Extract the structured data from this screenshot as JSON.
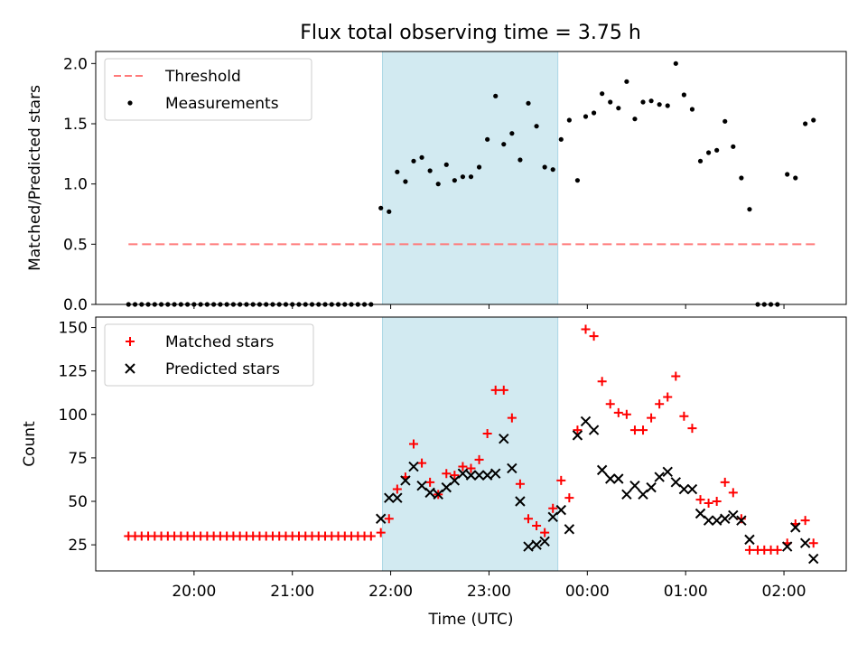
{
  "title": "Flux total observing time = 3.75 h",
  "colors": {
    "threshold": "#ff7a7a",
    "measurement": "#000000",
    "matched": "#ff0000",
    "predicted": "#000000",
    "shade": "#add8e6"
  },
  "chart_data": [
    {
      "type": "scatter",
      "panel": "top",
      "ylabel": "Matched/Predicted stars",
      "xlabel": "",
      "ylim": [
        0,
        2.1
      ],
      "yticks": [
        "0.0",
        "0.5",
        "1.0",
        "1.5",
        "2.0"
      ],
      "xticks": [
        "20:00",
        "21:00",
        "22:00",
        "23:00",
        "00:00",
        "01:00",
        "02:00"
      ],
      "shaded_region": [
        "21:55",
        "23:42"
      ],
      "legend": [
        "Threshold",
        "Measurements"
      ],
      "legend_position": "upper-left",
      "threshold": {
        "name": "Threshold",
        "value": 0.5,
        "x_range": [
          "19:20",
          "02:20"
        ]
      },
      "series": [
        {
          "name": "Measurements",
          "points": [
            [
              "19:20",
              0.0
            ],
            [
              "19:24",
              0.0
            ],
            [
              "19:28",
              0.0
            ],
            [
              "19:32",
              0.0
            ],
            [
              "19:36",
              0.0
            ],
            [
              "19:40",
              0.0
            ],
            [
              "19:44",
              0.0
            ],
            [
              "19:48",
              0.0
            ],
            [
              "19:52",
              0.0
            ],
            [
              "19:56",
              0.0
            ],
            [
              "20:00",
              0.0
            ],
            [
              "20:04",
              0.0
            ],
            [
              "20:08",
              0.0
            ],
            [
              "20:12",
              0.0
            ],
            [
              "20:16",
              0.0
            ],
            [
              "20:20",
              0.0
            ],
            [
              "20:24",
              0.0
            ],
            [
              "20:28",
              0.0
            ],
            [
              "20:32",
              0.0
            ],
            [
              "20:36",
              0.0
            ],
            [
              "20:40",
              0.0
            ],
            [
              "20:44",
              0.0
            ],
            [
              "20:48",
              0.0
            ],
            [
              "20:52",
              0.0
            ],
            [
              "20:56",
              0.0
            ],
            [
              "21:00",
              0.0
            ],
            [
              "21:04",
              0.0
            ],
            [
              "21:08",
              0.0
            ],
            [
              "21:12",
              0.0
            ],
            [
              "21:16",
              0.0
            ],
            [
              "21:20",
              0.0
            ],
            [
              "21:24",
              0.0
            ],
            [
              "21:28",
              0.0
            ],
            [
              "21:32",
              0.0
            ],
            [
              "21:36",
              0.0
            ],
            [
              "21:40",
              0.0
            ],
            [
              "21:44",
              0.0
            ],
            [
              "21:48",
              0.0
            ],
            [
              "21:54",
              0.8
            ],
            [
              "21:59",
              0.77
            ],
            [
              "22:04",
              1.1
            ],
            [
              "22:09",
              1.02
            ],
            [
              "22:14",
              1.19
            ],
            [
              "22:19",
              1.22
            ],
            [
              "22:24",
              1.11
            ],
            [
              "22:29",
              1.0
            ],
            [
              "22:34",
              1.16
            ],
            [
              "22:39",
              1.03
            ],
            [
              "22:44",
              1.06
            ],
            [
              "22:49",
              1.06
            ],
            [
              "22:54",
              1.14
            ],
            [
              "22:59",
              1.37
            ],
            [
              "23:04",
              1.73
            ],
            [
              "23:09",
              1.33
            ],
            [
              "23:14",
              1.42
            ],
            [
              "23:19",
              1.2
            ],
            [
              "23:24",
              1.67
            ],
            [
              "23:29",
              1.48
            ],
            [
              "23:34",
              1.14
            ],
            [
              "23:39",
              1.12
            ],
            [
              "23:44",
              1.37
            ],
            [
              "23:49",
              1.53
            ],
            [
              "23:54",
              1.03
            ],
            [
              "23:59",
              1.56
            ],
            [
              "00:04",
              1.59
            ],
            [
              "00:09",
              1.75
            ],
            [
              "00:14",
              1.68
            ],
            [
              "00:19",
              1.63
            ],
            [
              "00:24",
              1.85
            ],
            [
              "00:29",
              1.54
            ],
            [
              "00:34",
              1.68
            ],
            [
              "00:39",
              1.69
            ],
            [
              "00:44",
              1.66
            ],
            [
              "00:49",
              1.65
            ],
            [
              "00:54",
              2.0
            ],
            [
              "00:59",
              1.74
            ],
            [
              "01:04",
              1.62
            ],
            [
              "01:09",
              1.19
            ],
            [
              "01:14",
              1.26
            ],
            [
              "01:19",
              1.28
            ],
            [
              "01:24",
              1.52
            ],
            [
              "01:29",
              1.31
            ],
            [
              "01:34",
              1.05
            ],
            [
              "01:39",
              0.79
            ],
            [
              "01:44",
              0.0
            ],
            [
              "01:48",
              0.0
            ],
            [
              "01:52",
              0.0
            ],
            [
              "01:56",
              0.0
            ],
            [
              "02:02",
              1.08
            ],
            [
              "02:07",
              1.05
            ],
            [
              "02:13",
              1.5
            ],
            [
              "02:18",
              1.53
            ]
          ]
        }
      ]
    },
    {
      "type": "scatter",
      "panel": "bottom",
      "ylabel": "Count",
      "xlabel": "Time (UTC)",
      "ylim": [
        10,
        156
      ],
      "yticks": [
        "25",
        "50",
        "75",
        "100",
        "125",
        "150"
      ],
      "xticks": [
        "20:00",
        "21:00",
        "22:00",
        "23:00",
        "00:00",
        "01:00",
        "02:00"
      ],
      "shaded_region": [
        "21:55",
        "23:42"
      ],
      "legend": [
        "Matched stars",
        "Predicted stars"
      ],
      "legend_position": "upper-left",
      "series": [
        {
          "name": "Matched stars",
          "marker": "plus",
          "points": [
            [
              "19:20",
              30
            ],
            [
              "19:24",
              30
            ],
            [
              "19:28",
              30
            ],
            [
              "19:32",
              30
            ],
            [
              "19:36",
              30
            ],
            [
              "19:40",
              30
            ],
            [
              "19:44",
              30
            ],
            [
              "19:48",
              30
            ],
            [
              "19:52",
              30
            ],
            [
              "19:56",
              30
            ],
            [
              "20:00",
              30
            ],
            [
              "20:04",
              30
            ],
            [
              "20:08",
              30
            ],
            [
              "20:12",
              30
            ],
            [
              "20:16",
              30
            ],
            [
              "20:20",
              30
            ],
            [
              "20:24",
              30
            ],
            [
              "20:28",
              30
            ],
            [
              "20:32",
              30
            ],
            [
              "20:36",
              30
            ],
            [
              "20:40",
              30
            ],
            [
              "20:44",
              30
            ],
            [
              "20:48",
              30
            ],
            [
              "20:52",
              30
            ],
            [
              "20:56",
              30
            ],
            [
              "21:00",
              30
            ],
            [
              "21:04",
              30
            ],
            [
              "21:08",
              30
            ],
            [
              "21:12",
              30
            ],
            [
              "21:16",
              30
            ],
            [
              "21:20",
              30
            ],
            [
              "21:24",
              30
            ],
            [
              "21:28",
              30
            ],
            [
              "21:32",
              30
            ],
            [
              "21:36",
              30
            ],
            [
              "21:40",
              30
            ],
            [
              "21:44",
              30
            ],
            [
              "21:48",
              30
            ],
            [
              "21:54",
              32
            ],
            [
              "21:59",
              40
            ],
            [
              "22:04",
              57
            ],
            [
              "22:09",
              64
            ],
            [
              "22:14",
              83
            ],
            [
              "22:19",
              72
            ],
            [
              "22:24",
              61
            ],
            [
              "22:29",
              54
            ],
            [
              "22:34",
              66
            ],
            [
              "22:39",
              65
            ],
            [
              "22:44",
              70
            ],
            [
              "22:49",
              69
            ],
            [
              "22:54",
              74
            ],
            [
              "22:59",
              89
            ],
            [
              "23:04",
              114
            ],
            [
              "23:09",
              114
            ],
            [
              "23:14",
              98
            ],
            [
              "23:19",
              60
            ],
            [
              "23:24",
              40
            ],
            [
              "23:29",
              36
            ],
            [
              "23:34",
              32
            ],
            [
              "23:39",
              46
            ],
            [
              "23:44",
              62
            ],
            [
              "23:49",
              52
            ],
            [
              "23:54",
              91
            ],
            [
              "23:59",
              149
            ],
            [
              "00:04",
              145
            ],
            [
              "00:09",
              119
            ],
            [
              "00:14",
              106
            ],
            [
              "00:19",
              101
            ],
            [
              "00:24",
              100
            ],
            [
              "00:29",
              91
            ],
            [
              "00:34",
              91
            ],
            [
              "00:39",
              98
            ],
            [
              "00:44",
              106
            ],
            [
              "00:49",
              110
            ],
            [
              "00:54",
              122
            ],
            [
              "00:59",
              99
            ],
            [
              "01:04",
              92
            ],
            [
              "01:09",
              51
            ],
            [
              "01:14",
              49
            ],
            [
              "01:19",
              50
            ],
            [
              "01:24",
              61
            ],
            [
              "01:29",
              55
            ],
            [
              "01:34",
              40
            ],
            [
              "01:39",
              22
            ],
            [
              "01:44",
              22
            ],
            [
              "01:48",
              22
            ],
            [
              "01:52",
              22
            ],
            [
              "01:56",
              22
            ],
            [
              "02:02",
              26
            ],
            [
              "02:07",
              37
            ],
            [
              "02:13",
              39
            ],
            [
              "02:18",
              26
            ]
          ]
        },
        {
          "name": "Predicted stars",
          "marker": "x",
          "points": [
            [
              "21:54",
              40
            ],
            [
              "21:59",
              52
            ],
            [
              "22:04",
              52
            ],
            [
              "22:09",
              62
            ],
            [
              "22:14",
              70
            ],
            [
              "22:19",
              59
            ],
            [
              "22:24",
              55
            ],
            [
              "22:29",
              54
            ],
            [
              "22:34",
              58
            ],
            [
              "22:39",
              62
            ],
            [
              "22:44",
              66
            ],
            [
              "22:49",
              65
            ],
            [
              "22:54",
              65
            ],
            [
              "22:59",
              65
            ],
            [
              "23:04",
              66
            ],
            [
              "23:09",
              86
            ],
            [
              "23:14",
              69
            ],
            [
              "23:19",
              50
            ],
            [
              "23:24",
              24
            ],
            [
              "23:29",
              25
            ],
            [
              "23:34",
              27
            ],
            [
              "23:39",
              41
            ],
            [
              "23:44",
              45
            ],
            [
              "23:49",
              34
            ],
            [
              "23:54",
              88
            ],
            [
              "23:59",
              96
            ],
            [
              "00:04",
              91
            ],
            [
              "00:09",
              68
            ],
            [
              "00:14",
              63
            ],
            [
              "00:19",
              63
            ],
            [
              "00:24",
              54
            ],
            [
              "00:29",
              59
            ],
            [
              "00:34",
              54
            ],
            [
              "00:39",
              58
            ],
            [
              "00:44",
              64
            ],
            [
              "00:49",
              67
            ],
            [
              "00:54",
              61
            ],
            [
              "00:59",
              57
            ],
            [
              "01:04",
              57
            ],
            [
              "01:09",
              43
            ],
            [
              "01:14",
              39
            ],
            [
              "01:19",
              39
            ],
            [
              "01:24",
              40
            ],
            [
              "01:29",
              42
            ],
            [
              "01:34",
              39
            ],
            [
              "01:39",
              28
            ],
            [
              "02:02",
              24
            ],
            [
              "02:07",
              35
            ],
            [
              "02:13",
              26
            ],
            [
              "02:18",
              17
            ]
          ]
        }
      ]
    }
  ]
}
